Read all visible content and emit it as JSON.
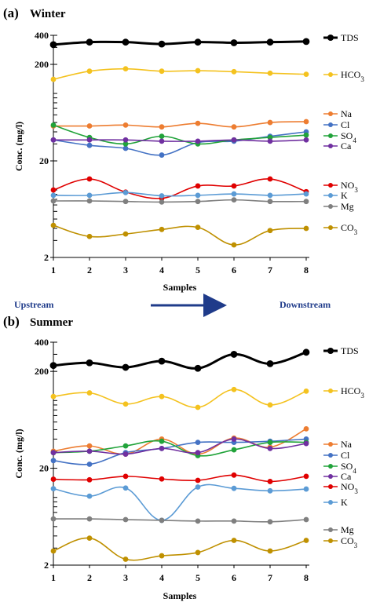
{
  "flow": {
    "left": "Upstream",
    "right": "Downstream"
  },
  "colors": {
    "TDS": "#000000",
    "HCO3": "#f4c21f",
    "Na": "#ed7d31",
    "Cl": "#4472c4",
    "SO4": "#21a33a",
    "Ca": "#7030a0",
    "NO3": "#e00000",
    "K": "#5b9bd5",
    "Mg": "#7f7f7f",
    "CO3": "#bf9000",
    "arrow": "#1f3b8a"
  },
  "chart_data": [
    {
      "type": "line",
      "panel": "(a)",
      "title": "Winter",
      "xlabel": "Samples",
      "ylabel": "Conc. (mg/l)",
      "yscale": "log",
      "ylim": [
        2,
        400
      ],
      "yticks": [
        2,
        20,
        200,
        400
      ],
      "x": [
        1,
        2,
        3,
        4,
        5,
        6,
        7,
        8
      ],
      "series": [
        {
          "name": "TDS",
          "values": [
            320,
            340,
            340,
            325,
            340,
            335,
            340,
            345
          ]
        },
        {
          "name": "HCO3",
          "values": [
            140,
            170,
            180,
            170,
            172,
            168,
            162,
            158
          ]
        },
        {
          "name": "Na",
          "values": [
            46,
            46,
            47,
            45,
            49,
            45,
            50,
            51
          ]
        },
        {
          "name": "Cl",
          "values": [
            33,
            29,
            27,
            23,
            31,
            32,
            36,
            40
          ]
        },
        {
          "name": "SO4",
          "values": [
            47,
            35,
            30,
            36,
            30,
            33,
            35,
            37
          ]
        },
        {
          "name": "Ca",
          "values": [
            33,
            33,
            33,
            32,
            32,
            33,
            32,
            33
          ]
        },
        {
          "name": "NO3",
          "values": [
            10,
            13,
            9.5,
            8.2,
            11,
            11,
            13,
            9.6
          ]
        },
        {
          "name": "K",
          "values": [
            8.8,
            8.8,
            9.4,
            8.7,
            8.8,
            9.1,
            8.8,
            9.1
          ]
        },
        {
          "name": "Mg",
          "values": [
            7.7,
            7.7,
            7.6,
            7.5,
            7.6,
            7.9,
            7.6,
            7.6
          ]
        },
        {
          "name": "CO3",
          "values": [
            4.3,
            3.3,
            3.5,
            3.9,
            4.1,
            2.7,
            3.8,
            4.0
          ]
        }
      ]
    },
    {
      "type": "line",
      "panel": "(b)",
      "title": "Summer",
      "xlabel": "Samples",
      "ylabel": "Conc. (mg/l)",
      "yscale": "log",
      "ylim": [
        2,
        400
      ],
      "yticks": [
        2,
        20,
        200,
        400
      ],
      "x": [
        1,
        2,
        3,
        4,
        5,
        6,
        7,
        8
      ],
      "series": [
        {
          "name": "TDS",
          "values": [
            230,
            245,
            220,
            255,
            215,
            300,
            240,
            315
          ]
        },
        {
          "name": "HCO3",
          "values": [
            110,
            120,
            92,
            110,
            85,
            130,
            90,
            125
          ]
        },
        {
          "name": "Na",
          "values": [
            30,
            34,
            28,
            40,
            28,
            41,
            33,
            51
          ]
        },
        {
          "name": "Cl",
          "values": [
            24,
            22,
            29,
            32,
            37,
            37,
            38,
            40
          ]
        },
        {
          "name": "SO4",
          "values": [
            29,
            30,
            34,
            38,
            27,
            31,
            37,
            37
          ]
        },
        {
          "name": "Ca",
          "values": [
            29,
            30,
            28,
            32,
            29,
            40,
            32,
            36
          ]
        },
        {
          "name": "NO3",
          "values": [
            15.4,
            15.2,
            16.5,
            15.5,
            15.0,
            17.0,
            14.6,
            16.5
          ]
        },
        {
          "name": "K",
          "values": [
            12.3,
            10.3,
            12.5,
            5.8,
            12.8,
            12.4,
            11.7,
            12.2
          ]
        },
        {
          "name": "Mg",
          "values": [
            6.0,
            6.0,
            5.9,
            5.8,
            5.7,
            5.7,
            5.6,
            5.9
          ]
        },
        {
          "name": "CO3",
          "values": [
            2.8,
            3.8,
            2.3,
            2.5,
            2.7,
            3.6,
            2.8,
            3.6
          ]
        }
      ]
    }
  ]
}
